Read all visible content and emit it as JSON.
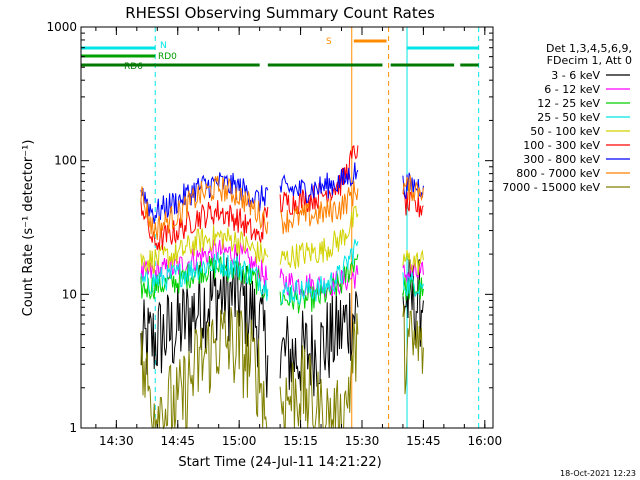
{
  "chart_data": {
    "type": "line",
    "title": "RHESSI Observing Summary Count Rates",
    "xlabel": "Start Time (24-Jul-11 14:21:22)",
    "ylabel": "Count Rate (s⁻¹ detector⁻¹)",
    "yscale": "log",
    "ylim": [
      1,
      1000
    ],
    "xlim": [
      "14:21:22",
      "16:02:00"
    ],
    "x_ticks": [
      "14:30",
      "14:45",
      "15:00",
      "15:15",
      "15:30",
      "15:45",
      "16:00"
    ],
    "y_ticks": [
      "1",
      "10",
      "100",
      "1000"
    ],
    "timestamp": "18-Oct-2021 12:23",
    "legend": {
      "placement": "right",
      "header": [
        "Det 1,3,4,5,6,9,",
        "FDecim 1, Att 0"
      ]
    },
    "flags": [
      {
        "label": "N",
        "color": "#00e5e5",
        "segments": [
          [
            "14:21:22",
            "14:39:30"
          ],
          [
            "15:41:00",
            "15:58:30"
          ]
        ]
      },
      {
        "label": "RD0",
        "color": "#00a000",
        "segments": [
          [
            "14:21:22",
            "14:39:30"
          ]
        ]
      },
      {
        "label": "RD6",
        "color": "#007800",
        "segments": [
          [
            "14:21:22",
            "15:05:00"
          ],
          [
            "15:07:00",
            "15:35:00"
          ],
          [
            "15:37:00",
            "15:52:30"
          ],
          [
            "15:54:00",
            "15:58:30"
          ]
        ]
      },
      {
        "label": "S",
        "color": "#ff8c00",
        "segments": [
          [
            "15:28:00",
            "15:36:00"
          ]
        ]
      }
    ],
    "markers": [
      {
        "time": "14:21:22",
        "color": "#00e5e5",
        "style": "solid"
      },
      {
        "time": "14:39:30",
        "color": "#00e5e5",
        "style": "dashed"
      },
      {
        "time": "15:41:00",
        "color": "#00e5e5",
        "style": "solid"
      },
      {
        "time": "15:58:30",
        "color": "#00e5e5",
        "style": "dashed"
      },
      {
        "time": "15:27:30",
        "color": "#ff8c00",
        "style": "solid"
      },
      {
        "time": "15:36:30",
        "color": "#ff8c00",
        "style": "dashed"
      }
    ],
    "x": [
      "14:36",
      "14:39",
      "14:45",
      "14:50",
      "14:55",
      "15:00",
      "15:05",
      "15:07",
      "15:10",
      "15:15",
      "15:20",
      "15:25",
      "15:29",
      "15:40",
      "15:42",
      "15:44",
      "15:45"
    ],
    "gaps_after_index": [
      7,
      12
    ],
    "series": [
      {
        "name": "3 - 6 keV",
        "color": "#000000",
        "values": [
          4.0,
          4.5,
          5.5,
          8.0,
          10.0,
          9.5,
          6.0,
          3.5,
          3.5,
          3.5,
          4.0,
          5.5,
          8.0,
          9.0,
          9.0,
          8.5,
          9.0
        ]
      },
      {
        "name": "6 - 12 keV",
        "color": "#ff00ff",
        "values": [
          14.0,
          14.5,
          16.0,
          19.0,
          21.0,
          20.0,
          15.0,
          13.0,
          12.5,
          12.0,
          11.5,
          12.5,
          14.0,
          14.0,
          14.5,
          14.0,
          14.0
        ]
      },
      {
        "name": "12 - 25 keV",
        "color": "#00d000",
        "values": [
          11.0,
          11.5,
          12.5,
          15.0,
          16.0,
          15.0,
          12.0,
          10.0,
          9.5,
          9.0,
          9.5,
          12.0,
          20.0,
          11.0,
          11.0,
          11.0,
          11.0
        ]
      },
      {
        "name": "25 - 50 keV",
        "color": "#00e5e5",
        "values": [
          12.0,
          12.5,
          14.0,
          16.0,
          17.0,
          16.0,
          13.0,
          11.0,
          10.5,
          10.5,
          11.0,
          14.0,
          25.0,
          12.0,
          12.0,
          12.0,
          12.0
        ]
      },
      {
        "name": "50 - 100 keV",
        "color": "#d2d200",
        "values": [
          18.0,
          18.0,
          20.0,
          25.0,
          27.0,
          25.0,
          20.0,
          19.0,
          18.0,
          20.0,
          21.0,
          26.0,
          40.0,
          18.0,
          18.0,
          17.0,
          18.0
        ]
      },
      {
        "name": "100 - 300 keV",
        "color": "#ff0000",
        "values": [
          50.0,
          24.0,
          30.0,
          38.0,
          42.0,
          36.0,
          26.0,
          45.0,
          48.0,
          50.0,
          55.0,
          68.0,
          130.0,
          48.0,
          46.0,
          45.0,
          46.0
        ]
      },
      {
        "name": "300 - 800 keV",
        "color": "#0000ff",
        "values": [
          62.0,
          40.0,
          50.0,
          63.0,
          68.0,
          63.0,
          50.0,
          60.0,
          62.0,
          60.0,
          63.0,
          70.0,
          85.0,
          65.0,
          65.0,
          65.0,
          65.0
        ]
      },
      {
        "name": "800 - 7000 keV",
        "color": "#ff8000",
        "values": [
          58.0,
          30.0,
          40.0,
          55.0,
          63.0,
          55.0,
          40.0,
          35.0,
          35.0,
          38.0,
          40.0,
          45.0,
          62.0,
          63.0,
          62.0,
          62.0,
          63.0
        ]
      },
      {
        "name": "7000 - 15000 keV",
        "color": "#808000",
        "values": [
          3.0,
          1.5,
          1.4,
          3.0,
          4.5,
          4.0,
          2.5,
          1.0,
          1.5,
          2.0,
          1.2,
          1.0,
          5.0,
          4.0,
          4.0,
          4.0,
          4.0
        ]
      }
    ]
  }
}
